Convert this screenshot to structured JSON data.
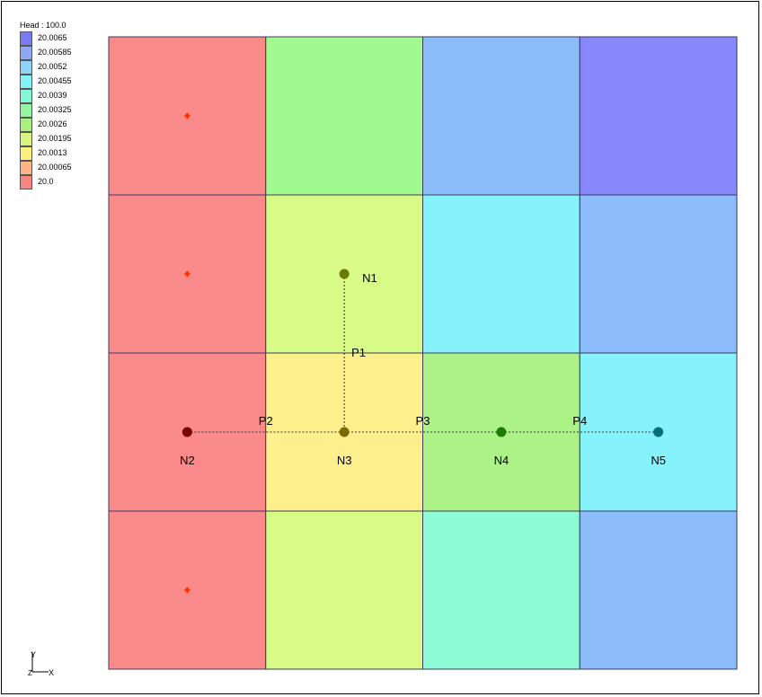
{
  "legend": {
    "title": "Head : 100.0",
    "entries": [
      {
        "label": "20.0065",
        "color": "#7b7bf0"
      },
      {
        "label": "20.00585",
        "color": "#8fa8f5"
      },
      {
        "label": "20.0052",
        "color": "#8fd2f7"
      },
      {
        "label": "20.00455",
        "color": "#86f1f7"
      },
      {
        "label": "20.0039",
        "color": "#86f7d6"
      },
      {
        "label": "20.00325",
        "color": "#93f5a2"
      },
      {
        "label": "20.0026",
        "color": "#a9f07f"
      },
      {
        "label": "20.00195",
        "color": "#d8f582"
      },
      {
        "label": "20.0013",
        "color": "#fbef7f"
      },
      {
        "label": "20.00065",
        "color": "#fbb486"
      },
      {
        "label": "20.0",
        "color": "#f88383"
      }
    ]
  },
  "grid": {
    "rows": 4,
    "cols": 4,
    "cell_colors": [
      [
        "#fa8a8a",
        "#a2f98f",
        "#8cbdfb",
        "#8688fb"
      ],
      [
        "#fa8a8a",
        "#d8fa86",
        "#86f2fb",
        "#8cbcfb"
      ],
      [
        "#fa8a8a",
        "#fdf08c",
        "#abf386",
        "#86f2fb"
      ],
      [
        "#fa8a8a",
        "#d8fa86",
        "#8cfbd6",
        "#8cbcfb"
      ]
    ],
    "cell_markers": [
      {
        "row": 0,
        "col": 0,
        "color": "#ff3300"
      },
      {
        "row": 1,
        "col": 0,
        "color": "#ff3300"
      },
      {
        "row": 3,
        "col": 0,
        "color": "#ff3300"
      }
    ]
  },
  "nodes": [
    {
      "id": "N1",
      "row": 1,
      "col": 1,
      "color": "#6b7a00",
      "label_side": "right"
    },
    {
      "id": "N2",
      "row": 2,
      "col": 0,
      "color": "#7a0000",
      "label_side": "below"
    },
    {
      "id": "N3",
      "row": 2,
      "col": 1,
      "color": "#7a6a00",
      "label_side": "below"
    },
    {
      "id": "N4",
      "row": 2,
      "col": 2,
      "color": "#1e7a00",
      "label_side": "below"
    },
    {
      "id": "N5",
      "row": 2,
      "col": 3,
      "color": "#00707a",
      "label_side": "below"
    }
  ],
  "pipes": [
    {
      "id": "P1",
      "from": "N1",
      "to": "N3"
    },
    {
      "id": "P2",
      "from": "N2",
      "to": "N3"
    },
    {
      "id": "P3",
      "from": "N3",
      "to": "N4"
    },
    {
      "id": "P4",
      "from": "N4",
      "to": "N5"
    }
  ],
  "axes": {
    "y": "Y",
    "x": "X",
    "z": "Z"
  }
}
